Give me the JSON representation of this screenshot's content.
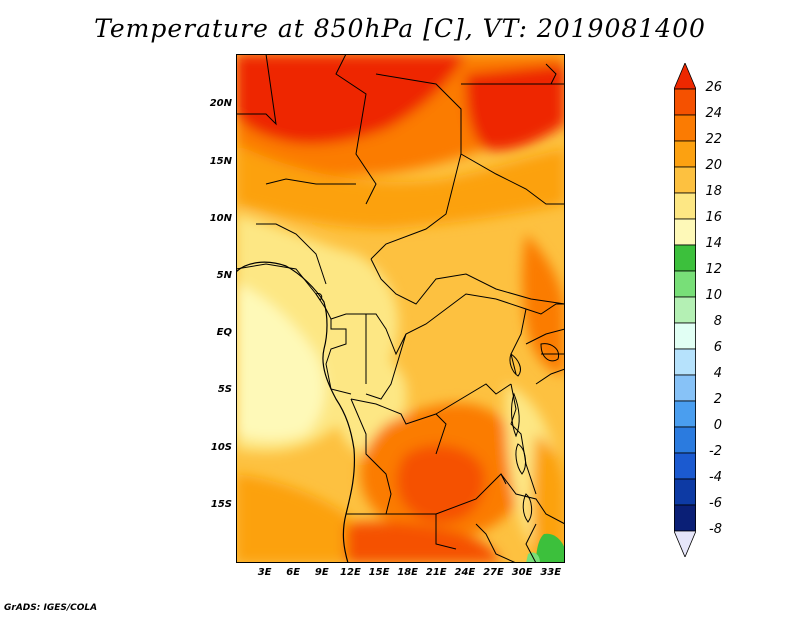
{
  "title": "Temperature at 850hPa [C], VT: 2019081400",
  "credit": "GrADS: IGES/COLA",
  "map": {
    "lat_ticks": [
      "20N",
      "15N",
      "10N",
      "5N",
      "EQ",
      "5S",
      "10S",
      "15S"
    ],
    "lat_values": [
      20,
      15,
      10,
      5,
      0,
      -5,
      -10,
      -15
    ],
    "lon_ticks": [
      "3E",
      "6E",
      "9E",
      "12E",
      "15E",
      "18E",
      "21E",
      "24E",
      "27E",
      "30E",
      "33E"
    ],
    "lon_values": [
      3,
      6,
      9,
      12,
      15,
      18,
      21,
      24,
      27,
      30,
      33
    ],
    "lon_range": [
      0,
      34.5
    ],
    "lat_range": [
      -20,
      24.5
    ]
  },
  "colorbar": {
    "labels": [
      "26",
      "24",
      "22",
      "20",
      "18",
      "16",
      "14",
      "12",
      "10",
      "8",
      "6",
      "4",
      "2",
      "0",
      "-2",
      "-4",
      "-6",
      "-8"
    ],
    "levels": [
      26,
      24,
      22,
      20,
      18,
      16,
      14,
      12,
      10,
      8,
      6,
      4,
      2,
      0,
      -2,
      -4,
      -6,
      -8
    ],
    "colors": [
      "#ee2800",
      "#f55100",
      "#fb7b02",
      "#fca111",
      "#fdc140",
      "#fde784",
      "#fef9b8",
      "#3cc03c",
      "#78df78",
      "#b4f0b4",
      "#e1fff4",
      "#b6e2fc",
      "#87c2f7",
      "#4a9eef",
      "#2b7bdf",
      "#1b5ad0",
      "#0d3aa4",
      "#0a1f76",
      "#e6e6fa"
    ]
  }
}
